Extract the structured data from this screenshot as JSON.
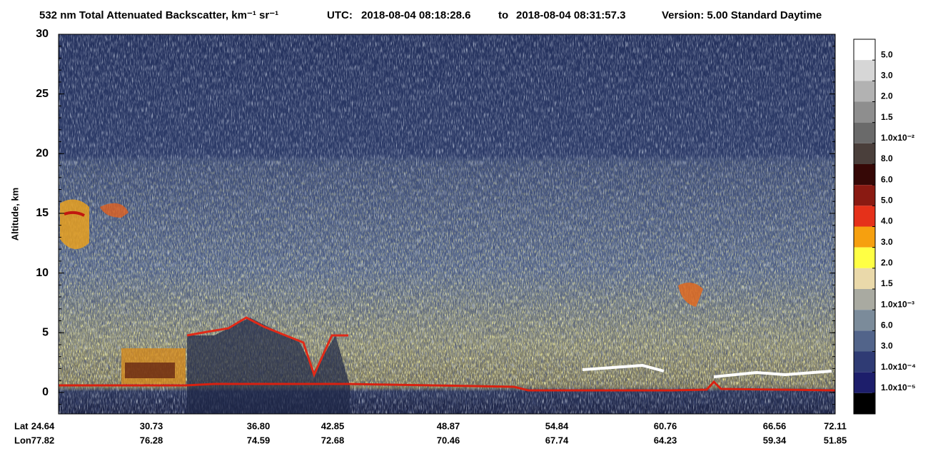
{
  "chart_data": {
    "type": "heatmap",
    "title": "532 nm Total Attenuated Backscatter, km⁻¹ sr⁻¹",
    "utc_label": "UTC:",
    "start_time": "2018-08-04 08:18:28.6",
    "to": "to",
    "end_time": "2018-08-04 08:31:57.3",
    "version": "Version: 5.00  Standard  Daytime",
    "ylabel": "Altitude, km",
    "ylim": [
      -1.8,
      30
    ],
    "yticks": [
      0,
      5,
      10,
      15,
      20,
      25,
      30
    ],
    "lat_label": "Lat",
    "lon_label": "Lon",
    "lat": [
      "24.64",
      "30.73",
      "36.80",
      "42.85",
      "48.87",
      "54.84",
      "60.76",
      "66.56",
      "72.11"
    ],
    "lon": [
      "77.82",
      "76.28",
      "74.59",
      "72.68",
      "70.46",
      "67.74",
      "64.23",
      "59.34",
      "51.85"
    ],
    "colorbar": {
      "colors": [
        "#ffffff",
        "#d6d6d6",
        "#b2b2b2",
        "#8e8e8e",
        "#6a6a6a",
        "#4a3f3b",
        "#360806",
        "#8a1a12",
        "#e5311a",
        "#f6a00f",
        "#ffff44",
        "#ead9aa",
        "#a9aaa1",
        "#7b8b9a",
        "#52648a",
        "#2f3b74",
        "#1d1e6b",
        "#000000"
      ],
      "labels": [
        "5.0",
        "3.0",
        "2.0",
        "1.5",
        "1.0x10⁻²",
        "8.0",
        "6.0",
        "5.0",
        "4.0",
        "3.0",
        "2.0",
        "1.5",
        "1.0x10⁻³",
        "6.0",
        "3.0",
        "1.0x10⁻⁴",
        "1.0x10⁻⁵"
      ]
    }
  }
}
